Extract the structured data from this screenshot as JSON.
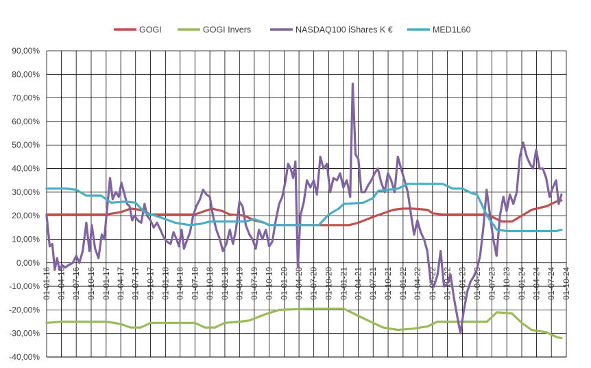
{
  "chart_data": {
    "type": "line",
    "title": "",
    "xlabel": "",
    "ylabel": "",
    "ylim": [
      -40,
      90
    ],
    "y_tick_step": 10,
    "y_tick_format": "comma-percent-2dp",
    "grid": true,
    "legend_position": "top",
    "x_range": [
      "2016-01-01",
      "2024-10-01"
    ],
    "x_ticks": [
      "01-01-16",
      "01-04-16",
      "01-07-16",
      "01-10-16",
      "01-01-17",
      "01-04-17",
      "01-07-17",
      "01-10-17",
      "01-01-18",
      "01-04-18",
      "01-07-18",
      "01-10-18",
      "01-01-19",
      "01-04-19",
      "01-07-19",
      "01-10-19",
      "01-01-20",
      "01-04-20",
      "01-07-20",
      "01-10-20",
      "01-01-21",
      "01-04-21",
      "01-07-21",
      "01-10-21",
      "01-01-22",
      "01-04-22",
      "01-07-22",
      "01-10-22",
      "01-01-23",
      "01-04-23",
      "01-07-23",
      "01-10-23",
      "01-01-24",
      "01-04-24",
      "01-07-24",
      "01-10-24"
    ],
    "series": [
      {
        "name": "GOGI",
        "color": "#c0504d",
        "points": [
          [
            "2016-01-01",
            20.5
          ],
          [
            "2016-04-01",
            20.5
          ],
          [
            "2016-07-01",
            20.5
          ],
          [
            "2016-10-01",
            20.5
          ],
          [
            "2017-01-01",
            20.5
          ],
          [
            "2017-04-01",
            21.5
          ],
          [
            "2017-06-01",
            23
          ],
          [
            "2017-08-01",
            22.5
          ],
          [
            "2017-10-01",
            20.5
          ],
          [
            "2018-01-01",
            20.5
          ],
          [
            "2018-07-01",
            20.5
          ],
          [
            "2018-09-01",
            22
          ],
          [
            "2018-10-15",
            23
          ],
          [
            "2018-12-15",
            22
          ],
          [
            "2019-02-01",
            20.5
          ],
          [
            "2019-05-01",
            20
          ],
          [
            "2019-07-01",
            18
          ],
          [
            "2019-09-01",
            17
          ],
          [
            "2019-10-01",
            16
          ],
          [
            "2020-06-01",
            16
          ],
          [
            "2021-02-01",
            16
          ],
          [
            "2021-04-01",
            17
          ],
          [
            "2021-07-01",
            19.5
          ],
          [
            "2021-09-01",
            21
          ],
          [
            "2021-11-01",
            22.5
          ],
          [
            "2022-01-01",
            23
          ],
          [
            "2022-03-01",
            23
          ],
          [
            "2022-06-01",
            22.5
          ],
          [
            "2022-07-01",
            21
          ],
          [
            "2022-09-01",
            20.5
          ],
          [
            "2023-06-01",
            20.5
          ],
          [
            "2023-09-01",
            17.5
          ],
          [
            "2023-11-01",
            17.5
          ],
          [
            "2024-01-01",
            20
          ],
          [
            "2024-03-01",
            22.5
          ],
          [
            "2024-06-01",
            24
          ],
          [
            "2024-08-01",
            26
          ],
          [
            "2024-09-01",
            26.5
          ]
        ]
      },
      {
        "name": "GOGI Invers",
        "color": "#9bbb59",
        "points": [
          [
            "2016-01-01",
            -25.5
          ],
          [
            "2016-04-01",
            -25
          ],
          [
            "2016-07-01",
            -25
          ],
          [
            "2016-10-01",
            -25
          ],
          [
            "2017-01-01",
            -25
          ],
          [
            "2017-04-01",
            -26
          ],
          [
            "2017-06-01",
            -27.5
          ],
          [
            "2017-08-01",
            -27.5
          ],
          [
            "2017-10-01",
            -25.5
          ],
          [
            "2018-01-01",
            -25.5
          ],
          [
            "2018-07-01",
            -25.5
          ],
          [
            "2018-09-01",
            -27.5
          ],
          [
            "2018-11-01",
            -27.5
          ],
          [
            "2019-01-01",
            -25.5
          ],
          [
            "2019-04-01",
            -25
          ],
          [
            "2019-06-01",
            -24.5
          ],
          [
            "2019-09-01",
            -22
          ],
          [
            "2019-12-01",
            -20
          ],
          [
            "2020-06-01",
            -19.5
          ],
          [
            "2021-01-01",
            -19.5
          ],
          [
            "2021-04-01",
            -22.5
          ],
          [
            "2021-07-01",
            -25.5
          ],
          [
            "2021-09-01",
            -27.5
          ],
          [
            "2021-12-01",
            -28.5
          ],
          [
            "2022-03-01",
            -28
          ],
          [
            "2022-06-01",
            -27
          ],
          [
            "2022-08-01",
            -25
          ],
          [
            "2023-01-01",
            -25
          ],
          [
            "2023-06-01",
            -25
          ],
          [
            "2023-08-01",
            -21
          ],
          [
            "2023-11-01",
            -21.5
          ],
          [
            "2024-01-01",
            -25.5
          ],
          [
            "2024-03-01",
            -28.5
          ],
          [
            "2024-06-01",
            -29.5
          ],
          [
            "2024-08-01",
            -31.5
          ],
          [
            "2024-09-01",
            -32
          ]
        ]
      },
      {
        "name": "NASDAQ100 iShares K €",
        "color": "#8064a2",
        "points": [
          [
            "2016-01-01",
            20
          ],
          [
            "2016-01-20",
            7
          ],
          [
            "2016-02-05",
            8
          ],
          [
            "2016-02-20",
            -3
          ],
          [
            "2016-03-05",
            2
          ],
          [
            "2016-03-20",
            -3
          ],
          [
            "2016-04-05",
            -1
          ],
          [
            "2016-04-25",
            -2
          ],
          [
            "2016-05-15",
            -1
          ],
          [
            "2016-06-10",
            0
          ],
          [
            "2016-07-01",
            3
          ],
          [
            "2016-07-20",
            0
          ],
          [
            "2016-08-10",
            5
          ],
          [
            "2016-09-01",
            17
          ],
          [
            "2016-09-20",
            5
          ],
          [
            "2016-10-05",
            16
          ],
          [
            "2016-10-25",
            6
          ],
          [
            "2016-11-15",
            2
          ],
          [
            "2016-12-05",
            12
          ],
          [
            "2016-12-20",
            10
          ],
          [
            "2017-01-10",
            25
          ],
          [
            "2017-01-25",
            36
          ],
          [
            "2017-02-10",
            27
          ],
          [
            "2017-03-01",
            30
          ],
          [
            "2017-03-20",
            28
          ],
          [
            "2017-04-05",
            34
          ],
          [
            "2017-04-20",
            30
          ],
          [
            "2017-05-10",
            25
          ],
          [
            "2017-05-25",
            24
          ],
          [
            "2017-06-10",
            18
          ],
          [
            "2017-06-25",
            20
          ],
          [
            "2017-07-15",
            18
          ],
          [
            "2017-08-05",
            17
          ],
          [
            "2017-08-25",
            25
          ],
          [
            "2017-09-10",
            20
          ],
          [
            "2017-10-01",
            18
          ],
          [
            "2017-10-20",
            15
          ],
          [
            "2017-11-10",
            17
          ],
          [
            "2017-12-01",
            14
          ],
          [
            "2017-12-20",
            11
          ],
          [
            "2018-01-10",
            9
          ],
          [
            "2018-02-01",
            8
          ],
          [
            "2018-02-20",
            13
          ],
          [
            "2018-03-10",
            10
          ],
          [
            "2018-03-25",
            7
          ],
          [
            "2018-04-10",
            14
          ],
          [
            "2018-04-25",
            6
          ],
          [
            "2018-05-10",
            9
          ],
          [
            "2018-06-01",
            13
          ],
          [
            "2018-06-20",
            20
          ],
          [
            "2018-07-10",
            24
          ],
          [
            "2018-08-01",
            27
          ],
          [
            "2018-08-20",
            31
          ],
          [
            "2018-09-10",
            29
          ],
          [
            "2018-10-01",
            28
          ],
          [
            "2018-10-20",
            20
          ],
          [
            "2018-11-10",
            14
          ],
          [
            "2018-12-01",
            10
          ],
          [
            "2018-12-20",
            5
          ],
          [
            "2019-01-10",
            8
          ],
          [
            "2019-02-01",
            14
          ],
          [
            "2019-02-20",
            8
          ],
          [
            "2019-03-10",
            14
          ],
          [
            "2019-04-01",
            26
          ],
          [
            "2019-04-20",
            24
          ],
          [
            "2019-05-10",
            16
          ],
          [
            "2019-06-01",
            12
          ],
          [
            "2019-06-20",
            10
          ],
          [
            "2019-07-10",
            6
          ],
          [
            "2019-07-30",
            14
          ],
          [
            "2019-08-20",
            10
          ],
          [
            "2019-09-10",
            14
          ],
          [
            "2019-10-01",
            7
          ],
          [
            "2019-10-20",
            9
          ],
          [
            "2019-11-10",
            18
          ],
          [
            "2019-12-01",
            25
          ],
          [
            "2019-12-20",
            28
          ],
          [
            "2020-01-10",
            35
          ],
          [
            "2020-01-25",
            42
          ],
          [
            "2020-02-10",
            40
          ],
          [
            "2020-02-25",
            36
          ],
          [
            "2020-03-10",
            43
          ],
          [
            "2020-03-25",
            -2
          ],
          [
            "2020-04-10",
            20
          ],
          [
            "2020-05-01",
            26
          ],
          [
            "2020-05-20",
            35
          ],
          [
            "2020-06-10",
            32
          ],
          [
            "2020-07-01",
            35
          ],
          [
            "2020-07-20",
            29
          ],
          [
            "2020-08-10",
            45
          ],
          [
            "2020-08-30",
            40
          ],
          [
            "2020-09-20",
            42
          ],
          [
            "2020-10-10",
            30
          ],
          [
            "2020-10-30",
            36
          ],
          [
            "2020-11-20",
            35
          ],
          [
            "2020-12-10",
            38
          ],
          [
            "2020-12-30",
            32
          ],
          [
            "2021-01-20",
            35
          ],
          [
            "2021-02-10",
            28
          ],
          [
            "2021-02-25",
            76
          ],
          [
            "2021-03-15",
            46
          ],
          [
            "2021-04-01",
            44
          ],
          [
            "2021-04-20",
            30
          ],
          [
            "2021-05-10",
            30
          ],
          [
            "2021-06-01",
            33
          ],
          [
            "2021-06-20",
            35
          ],
          [
            "2021-07-10",
            38
          ],
          [
            "2021-07-30",
            40
          ],
          [
            "2021-08-20",
            34
          ],
          [
            "2021-09-10",
            30
          ],
          [
            "2021-09-30",
            38
          ],
          [
            "2021-10-20",
            35
          ],
          [
            "2021-11-10",
            30
          ],
          [
            "2021-11-30",
            45
          ],
          [
            "2021-12-20",
            40
          ],
          [
            "2022-01-10",
            35
          ],
          [
            "2022-01-30",
            30
          ],
          [
            "2022-02-20",
            20
          ],
          [
            "2022-03-10",
            12
          ],
          [
            "2022-03-30",
            18
          ],
          [
            "2022-04-20",
            13
          ],
          [
            "2022-05-10",
            10
          ],
          [
            "2022-05-30",
            5
          ],
          [
            "2022-06-20",
            -8
          ],
          [
            "2022-07-10",
            -10
          ],
          [
            "2022-08-01",
            -5
          ],
          [
            "2022-08-20",
            5
          ],
          [
            "2022-09-10",
            -10
          ],
          [
            "2022-09-30",
            -9
          ],
          [
            "2022-10-20",
            -5
          ],
          [
            "2022-11-10",
            -15
          ],
          [
            "2022-12-01",
            -23
          ],
          [
            "2022-12-20",
            -30
          ],
          [
            "2023-01-10",
            -20
          ],
          [
            "2023-02-01",
            -12
          ],
          [
            "2023-02-20",
            -8
          ],
          [
            "2023-03-10",
            -6
          ],
          [
            "2023-03-30",
            -3
          ],
          [
            "2023-04-20",
            3
          ],
          [
            "2023-05-10",
            15
          ],
          [
            "2023-05-30",
            31
          ],
          [
            "2023-06-20",
            20
          ],
          [
            "2023-07-10",
            10
          ],
          [
            "2023-07-30",
            3
          ],
          [
            "2023-08-20",
            20
          ],
          [
            "2023-09-10",
            28
          ],
          [
            "2023-09-30",
            22
          ],
          [
            "2023-10-20",
            29
          ],
          [
            "2023-11-10",
            25
          ],
          [
            "2023-12-01",
            30
          ],
          [
            "2023-12-20",
            45
          ],
          [
            "2024-01-10",
            51
          ],
          [
            "2024-02-01",
            45
          ],
          [
            "2024-02-20",
            42
          ],
          [
            "2024-03-10",
            40
          ],
          [
            "2024-03-30",
            48
          ],
          [
            "2024-04-20",
            40
          ],
          [
            "2024-05-10",
            40
          ],
          [
            "2024-05-30",
            36
          ],
          [
            "2024-06-20",
            28
          ],
          [
            "2024-07-10",
            32
          ],
          [
            "2024-07-30",
            35
          ],
          [
            "2024-08-15",
            25
          ],
          [
            "2024-09-01",
            29
          ]
        ]
      },
      {
        "name": "MED1L60",
        "color": "#4bacc6",
        "points": [
          [
            "2016-01-01",
            31.5
          ],
          [
            "2016-05-01",
            31.5
          ],
          [
            "2016-07-01",
            31
          ],
          [
            "2016-09-01",
            28.5
          ],
          [
            "2016-12-01",
            28.5
          ],
          [
            "2017-02-01",
            25.5
          ],
          [
            "2017-05-01",
            26
          ],
          [
            "2017-07-01",
            25.5
          ],
          [
            "2017-09-01",
            21
          ],
          [
            "2017-11-01",
            20
          ],
          [
            "2018-01-01",
            18.5
          ],
          [
            "2018-03-01",
            17
          ],
          [
            "2018-06-01",
            16
          ],
          [
            "2018-08-01",
            16.5
          ],
          [
            "2018-10-01",
            17.5
          ],
          [
            "2019-05-01",
            17.5
          ],
          [
            "2019-06-01",
            18
          ],
          [
            "2019-07-01",
            18.5
          ],
          [
            "2019-09-01",
            17
          ],
          [
            "2019-10-01",
            16
          ],
          [
            "2020-08-01",
            16
          ],
          [
            "2020-10-01",
            20.5
          ],
          [
            "2020-12-01",
            23
          ],
          [
            "2021-01-01",
            25
          ],
          [
            "2021-05-01",
            25.5
          ],
          [
            "2021-07-01",
            27.5
          ],
          [
            "2021-08-01",
            30.5
          ],
          [
            "2021-12-01",
            31.5
          ],
          [
            "2022-02-01",
            33.5
          ],
          [
            "2022-09-01",
            33.5
          ],
          [
            "2022-11-01",
            31.5
          ],
          [
            "2023-01-01",
            31.5
          ],
          [
            "2023-03-01",
            29.5
          ],
          [
            "2023-04-01",
            29
          ],
          [
            "2023-06-01",
            20
          ],
          [
            "2023-08-01",
            14
          ],
          [
            "2023-10-01",
            13.5
          ],
          [
            "2024-06-01",
            13.5
          ],
          [
            "2024-08-01",
            13.5
          ],
          [
            "2024-09-01",
            14
          ]
        ]
      }
    ]
  }
}
